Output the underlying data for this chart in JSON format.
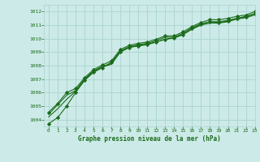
{
  "background_color": "#cceae7",
  "grid_color": "#aad4d0",
  "line_color": "#1a6b1a",
  "title": "Graphe pression niveau de la mer (hPa)",
  "tick_color": "#1a6b1a",
  "xlim": [
    -0.5,
    23
  ],
  "ylim": [
    1003.5,
    1012.5
  ],
  "yticks": [
    1004,
    1005,
    1006,
    1007,
    1008,
    1009,
    1010,
    1011,
    1012
  ],
  "xticks": [
    0,
    1,
    2,
    3,
    4,
    5,
    6,
    7,
    8,
    9,
    10,
    11,
    12,
    13,
    14,
    15,
    16,
    17,
    18,
    19,
    20,
    21,
    22,
    23
  ],
  "series": [
    [
      1003.7,
      1004.15,
      1005.0,
      1006.0,
      1006.9,
      1007.5,
      1007.85,
      1008.25,
      1009.05,
      1009.35,
      1009.45,
      1009.55,
      1009.75,
      1009.95,
      1010.05,
      1010.3,
      1010.75,
      1011.05,
      1011.25,
      1011.2,
      1011.3,
      1011.5,
      1011.6,
      1011.85
    ],
    [
      1004.2,
      1004.8,
      1005.5,
      1006.1,
      1006.95,
      1007.55,
      1007.9,
      1008.1,
      1009.0,
      1009.35,
      1009.5,
      1009.6,
      1009.75,
      1009.95,
      1010.05,
      1010.3,
      1010.7,
      1011.0,
      1011.15,
      1011.15,
      1011.25,
      1011.45,
      1011.55,
      1011.75
    ],
    [
      1004.4,
      1005.1,
      1005.8,
      1006.15,
      1007.0,
      1007.6,
      1007.95,
      1008.15,
      1009.1,
      1009.4,
      1009.55,
      1009.65,
      1009.85,
      1010.1,
      1010.1,
      1010.4,
      1010.8,
      1011.1,
      1011.25,
      1011.25,
      1011.35,
      1011.5,
      1011.65,
      1011.85
    ],
    [
      1004.55,
      1005.2,
      1006.0,
      1006.3,
      1007.1,
      1007.7,
      1008.05,
      1008.35,
      1009.2,
      1009.5,
      1009.65,
      1009.75,
      1009.95,
      1010.2,
      1010.2,
      1010.5,
      1010.9,
      1011.2,
      1011.4,
      1011.4,
      1011.5,
      1011.65,
      1011.75,
      1012.0
    ]
  ],
  "marker_series": [
    0,
    3
  ],
  "marker": "D",
  "marker_size": 2.2
}
